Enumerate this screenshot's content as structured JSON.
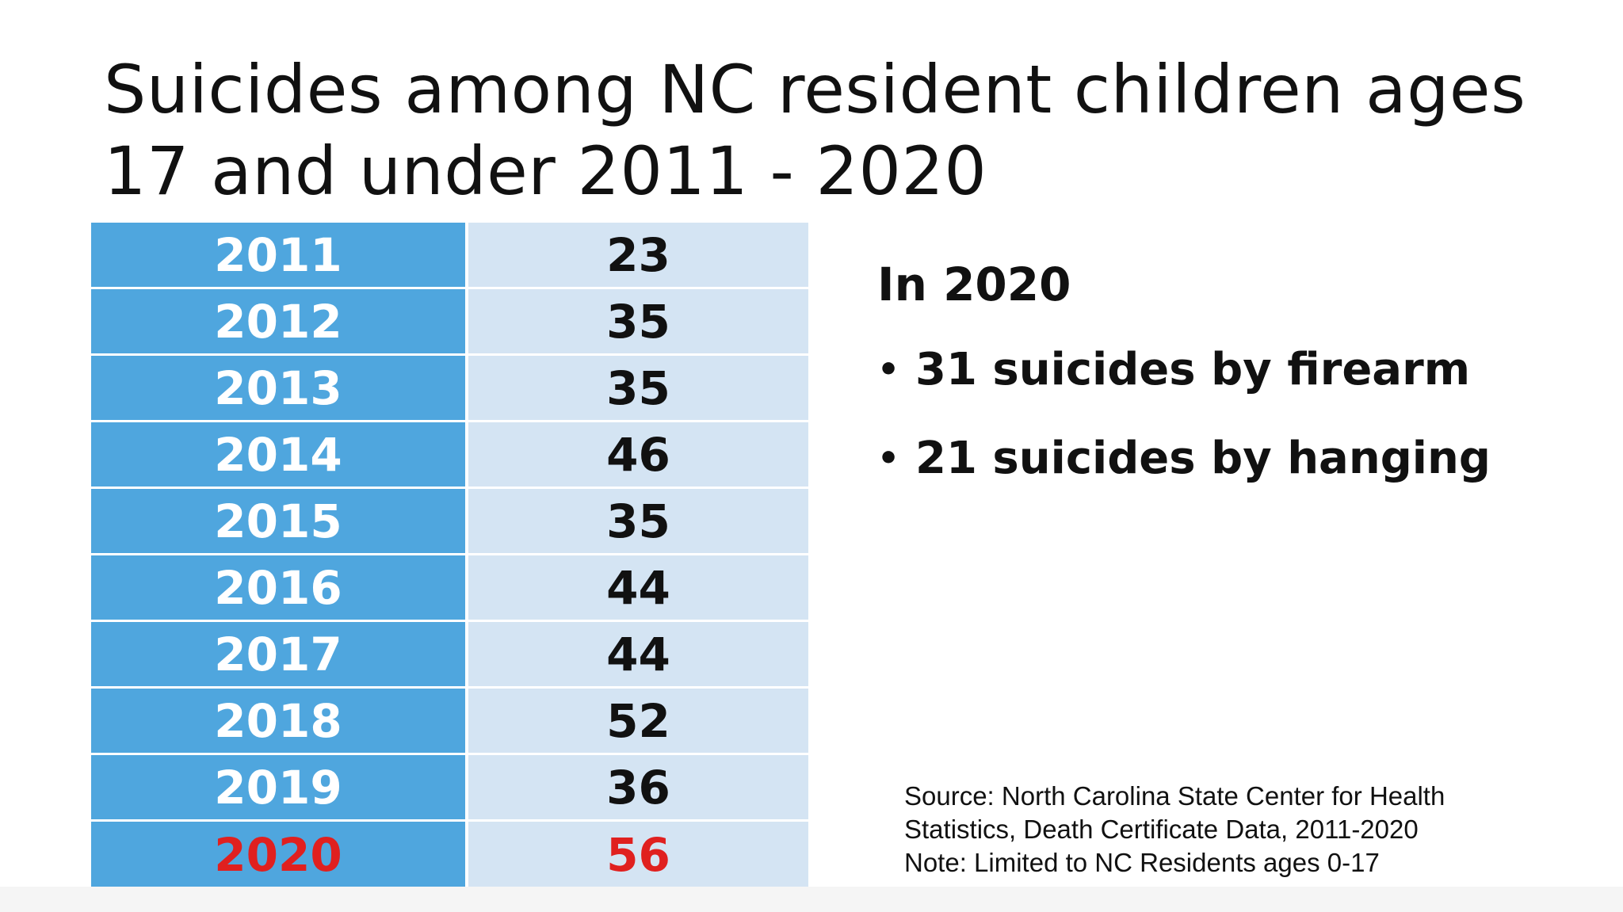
{
  "slide": {
    "title": "Suicides among NC resident children ages 17 and under 2011 - 2020",
    "table": {
      "rows": [
        {
          "year": "2011",
          "count": "23"
        },
        {
          "year": "2012",
          "count": "35"
        },
        {
          "year": "2013",
          "count": "35"
        },
        {
          "year": "2014",
          "count": "46"
        },
        {
          "year": "2015",
          "count": "35"
        },
        {
          "year": "2016",
          "count": "44"
        },
        {
          "year": "2017",
          "count": "44"
        },
        {
          "year": "2018",
          "count": "52"
        },
        {
          "year": "2019",
          "count": "36"
        },
        {
          "year": "2020",
          "count": "56"
        }
      ],
      "highlight_color": "#e0201f",
      "year_column_color": "#4fa6de",
      "count_column_color": "#d4e4f3"
    },
    "side": {
      "heading": "In 2020",
      "bullet_glyph": "•",
      "bullets": [
        "31 suicides by firearm",
        "21 suicides by hanging"
      ]
    },
    "source": {
      "lines": [
        "Source: North Carolina State Center for Health",
        "Statistics, Death Certificate Data, 2011-2020",
        "Note: Limited to NC Residents ages 0-17"
      ]
    }
  }
}
